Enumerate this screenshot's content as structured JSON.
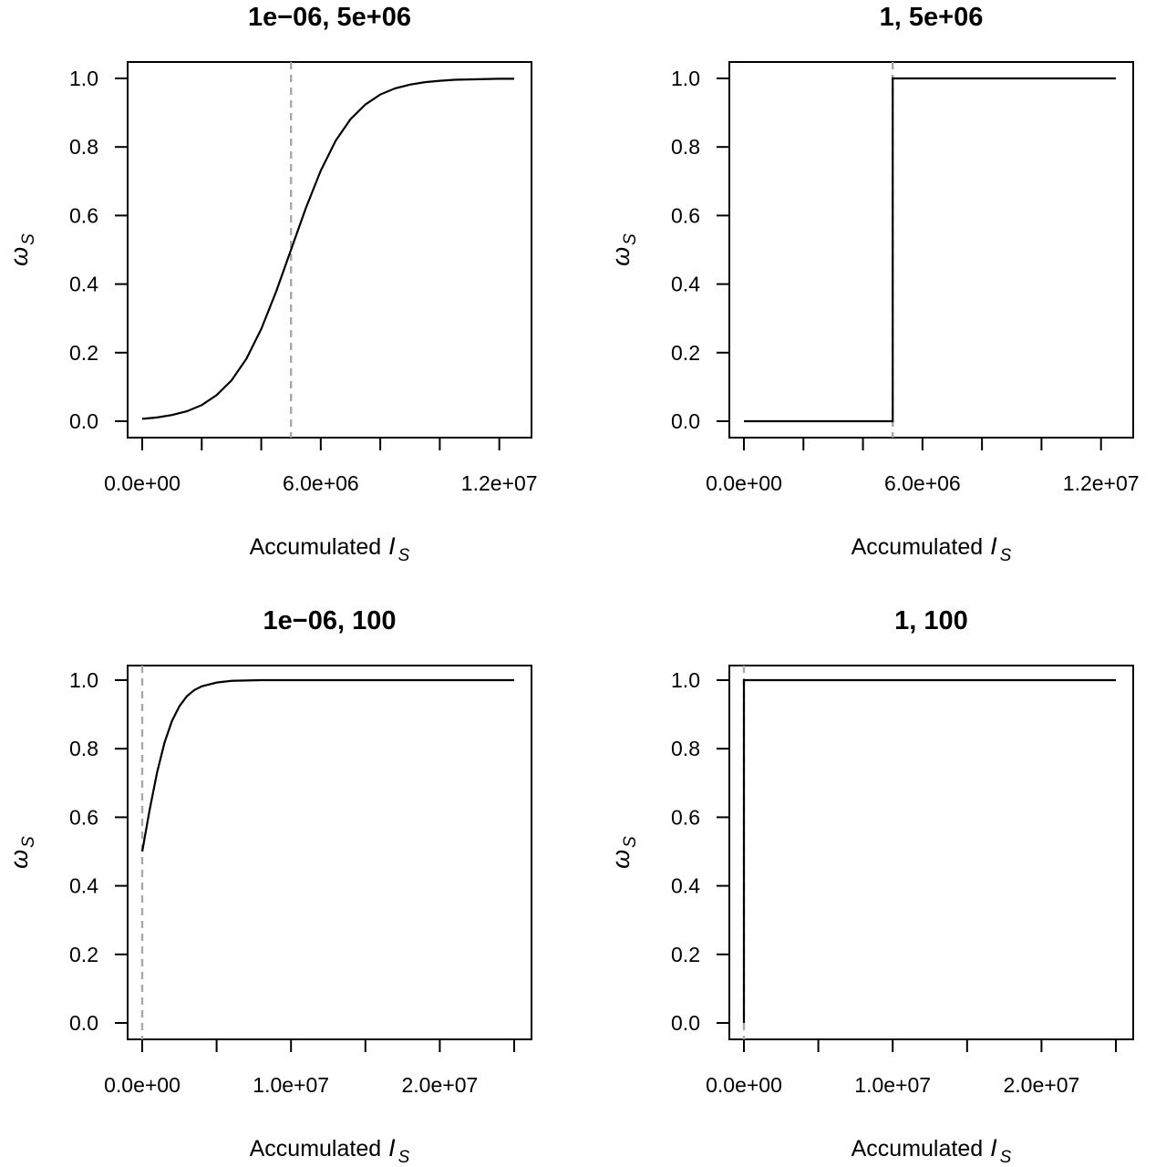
{
  "chart_data": [
    {
      "type": "line",
      "title": "1e−06, 5e+06",
      "xlabel": "Accumulated",
      "xlabel_symbol": "I",
      "xlabel_sub": "S",
      "ylabel_symbol": "ω",
      "ylabel_sub": "S",
      "x_ticks": [
        0,
        2000000,
        4000000,
        6000000,
        8000000,
        10000000,
        12000000
      ],
      "x_tick_labels": [
        "0.0e+00",
        "",
        "",
        "6.0e+06",
        "",
        "",
        "1.2e+07"
      ],
      "y_ticks": [
        0,
        0.2,
        0.4,
        0.6,
        0.8,
        1.0
      ],
      "y_tick_labels": [
        "0.0",
        "0.2",
        "0.4",
        "0.6",
        "0.8",
        "1.0"
      ],
      "xlim": [
        0,
        12500000
      ],
      "ylim": [
        0,
        1
      ],
      "grid": false,
      "reference_line": {
        "x": 5000000,
        "style": "dashed",
        "color": "#a8a8a8"
      },
      "series": [
        {
          "x": [
            0,
            500000,
            1000000,
            1500000,
            2000000,
            2500000,
            3000000,
            3500000,
            4000000,
            4500000,
            5000000,
            5500000,
            6000000,
            6500000,
            7000000,
            7500000,
            8000000,
            8500000,
            9000000,
            9500000,
            10000000,
            10500000,
            11000000,
            11500000,
            12000000,
            12500000
          ],
          "y": [
            0.007,
            0.011,
            0.018,
            0.029,
            0.047,
            0.076,
            0.119,
            0.182,
            0.269,
            0.378,
            0.5,
            0.622,
            0.731,
            0.818,
            0.881,
            0.924,
            0.953,
            0.971,
            0.982,
            0.989,
            0.993,
            0.996,
            0.997,
            0.998,
            0.999,
            0.999
          ]
        }
      ]
    },
    {
      "type": "line",
      "title": "1, 5e+06",
      "xlabel": "Accumulated",
      "xlabel_symbol": "I",
      "xlabel_sub": "S",
      "ylabel_symbol": "ω",
      "ylabel_sub": "S",
      "x_ticks": [
        0,
        2000000,
        4000000,
        6000000,
        8000000,
        10000000,
        12000000
      ],
      "x_tick_labels": [
        "0.0e+00",
        "",
        "",
        "6.0e+06",
        "",
        "",
        "1.2e+07"
      ],
      "y_ticks": [
        0,
        0.2,
        0.4,
        0.6,
        0.8,
        1.0
      ],
      "y_tick_labels": [
        "0.0",
        "0.2",
        "0.4",
        "0.6",
        "0.8",
        "1.0"
      ],
      "xlim": [
        0,
        12500000
      ],
      "ylim": [
        0,
        1
      ],
      "grid": false,
      "reference_line": {
        "x": 5000000,
        "style": "dashed",
        "color": "#a8a8a8"
      },
      "series": [
        {
          "x": [
            0,
            4999999,
            5000000,
            12500000
          ],
          "y": [
            0,
            0,
            1,
            1
          ]
        }
      ]
    },
    {
      "type": "line",
      "title": "1e−06, 100",
      "xlabel": "Accumulated",
      "xlabel_symbol": "I",
      "xlabel_sub": "S",
      "ylabel_symbol": "ω",
      "ylabel_sub": "S",
      "x_ticks": [
        0,
        5000000,
        10000000,
        15000000,
        20000000,
        25000000
      ],
      "x_tick_labels": [
        "0.0e+00",
        "",
        "1.0e+07",
        "",
        "2.0e+07",
        ""
      ],
      "y_ticks": [
        0,
        0.2,
        0.4,
        0.6,
        0.8,
        1.0
      ],
      "y_tick_labels": [
        "0.0",
        "0.2",
        "0.4",
        "0.6",
        "0.8",
        "1.0"
      ],
      "xlim": [
        0,
        25000000
      ],
      "ylim": [
        0,
        1
      ],
      "grid": false,
      "reference_line": {
        "x": 100,
        "style": "dashed",
        "color": "#a8a8a8"
      },
      "series": [
        {
          "x": [
            0,
            500000,
            1000000,
            1500000,
            2000000,
            2500000,
            3000000,
            3500000,
            4000000,
            5000000,
            6000000,
            7000000,
            8000000,
            10000000,
            12000000,
            15000000,
            20000000,
            25000000
          ],
          "y": [
            0.5,
            0.622,
            0.731,
            0.818,
            0.881,
            0.924,
            0.953,
            0.971,
            0.982,
            0.993,
            0.998,
            0.999,
            1.0,
            1.0,
            1.0,
            1.0,
            1.0,
            1.0
          ]
        }
      ]
    },
    {
      "type": "line",
      "title": "1, 100",
      "xlabel": "Accumulated",
      "xlabel_symbol": "I",
      "xlabel_sub": "S",
      "ylabel_symbol": "ω",
      "ylabel_sub": "S",
      "x_ticks": [
        0,
        5000000,
        10000000,
        15000000,
        20000000,
        25000000
      ],
      "x_tick_labels": [
        "0.0e+00",
        "",
        "1.0e+07",
        "",
        "2.0e+07",
        ""
      ],
      "y_ticks": [
        0,
        0.2,
        0.4,
        0.6,
        0.8,
        1.0
      ],
      "y_tick_labels": [
        "0.0",
        "0.2",
        "0.4",
        "0.6",
        "0.8",
        "1.0"
      ],
      "xlim": [
        0,
        25000000
      ],
      "ylim": [
        0,
        1
      ],
      "grid": false,
      "reference_line": {
        "x": 100,
        "style": "dashed",
        "color": "#a8a8a8"
      },
      "series": [
        {
          "x": [
            0,
            100,
            101,
            25000000
          ],
          "y": [
            0,
            0,
            1,
            1
          ]
        }
      ]
    }
  ]
}
